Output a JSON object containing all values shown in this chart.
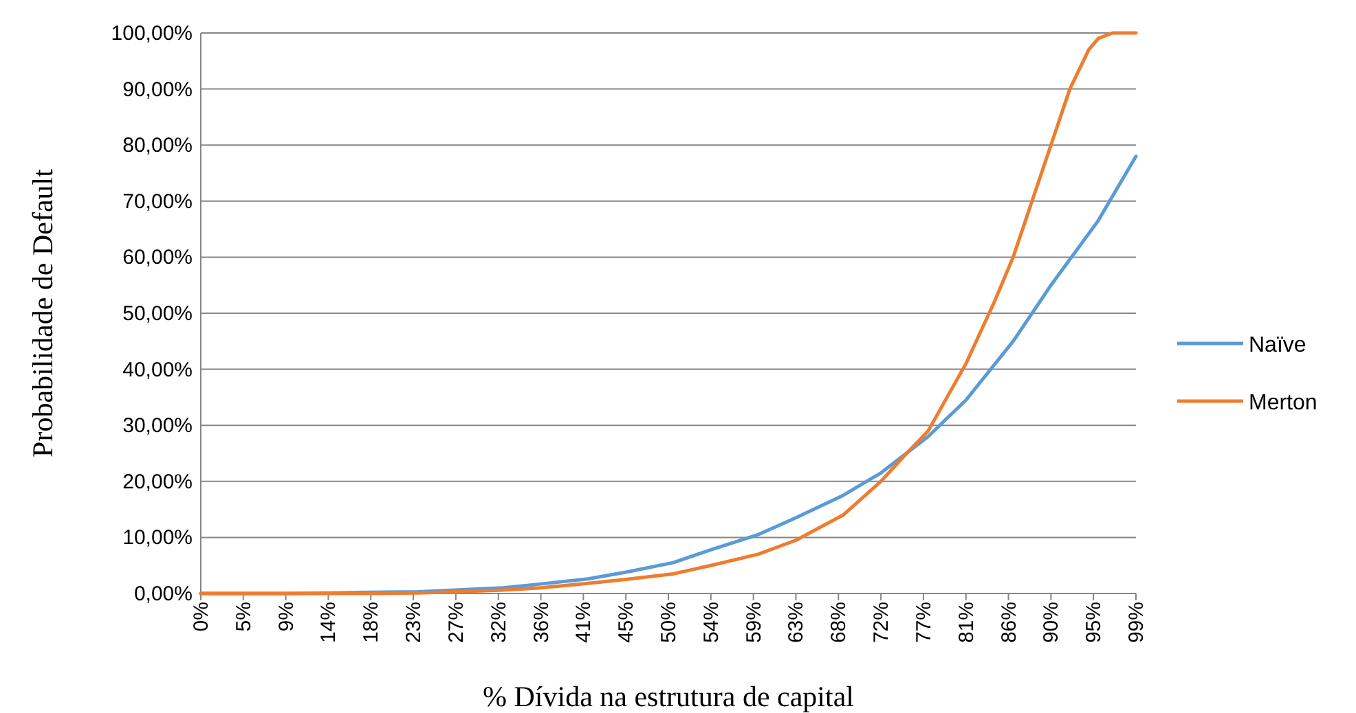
{
  "chart_data": {
    "type": "line",
    "xlabel": "% Dívida na estrutura de capital",
    "ylabel": "Probabilidade de Default",
    "xlim": [
      0,
      99
    ],
    "xticks": [
      {
        "value": 0,
        "label": "0%"
      },
      {
        "value": 4.5,
        "label": "5%"
      },
      {
        "value": 9,
        "label": "9%"
      },
      {
        "value": 13.5,
        "label": "14%"
      },
      {
        "value": 18,
        "label": "18%"
      },
      {
        "value": 22.5,
        "label": "23%"
      },
      {
        "value": 27,
        "label": "27%"
      },
      {
        "value": 31.5,
        "label": "32%"
      },
      {
        "value": 36,
        "label": "36%"
      },
      {
        "value": 40.5,
        "label": "41%"
      },
      {
        "value": 45,
        "label": "45%"
      },
      {
        "value": 49.5,
        "label": "50%"
      },
      {
        "value": 54,
        "label": "54%"
      },
      {
        "value": 58.5,
        "label": "59%"
      },
      {
        "value": 63,
        "label": "63%"
      },
      {
        "value": 67.5,
        "label": "68%"
      },
      {
        "value": 72,
        "label": "72%"
      },
      {
        "value": 76.5,
        "label": "77%"
      },
      {
        "value": 81,
        "label": "81%"
      },
      {
        "value": 85.5,
        "label": "86%"
      },
      {
        "value": 90,
        "label": "90%"
      },
      {
        "value": 94.5,
        "label": "95%"
      },
      {
        "value": 99,
        "label": "99%"
      }
    ],
    "ylim": [
      0,
      100
    ],
    "yticks": [
      {
        "value": 0,
        "label": "0,00%"
      },
      {
        "value": 10,
        "label": "10,00%"
      },
      {
        "value": 20,
        "label": "20,00%"
      },
      {
        "value": 30,
        "label": "30,00%"
      },
      {
        "value": 40,
        "label": "40,00%"
      },
      {
        "value": 50,
        "label": "50,00%"
      },
      {
        "value": 60,
        "label": "60,00%"
      },
      {
        "value": 70,
        "label": "70,00%"
      },
      {
        "value": 80,
        "label": "80,00%"
      },
      {
        "value": 90,
        "label": "90,00%"
      },
      {
        "value": 100,
        "label": "100,00%"
      }
    ],
    "grid": "y",
    "legend": "right",
    "marker": "none",
    "series": [
      {
        "name": "Naïve",
        "color": "#5b9bd5",
        "x": [
          0,
          9,
          14,
          18,
          23,
          27,
          32,
          36,
          41,
          45,
          50,
          54,
          59,
          63,
          68,
          72,
          77,
          81,
          86,
          90,
          95,
          99
        ],
        "values": [
          0,
          0,
          0.1,
          0.2,
          0.3,
          0.6,
          1,
          1.7,
          2.6,
          3.8,
          5.5,
          7.8,
          10.5,
          13.5,
          17.5,
          21.5,
          28,
          34.5,
          45,
          55,
          66.5,
          78
        ]
      },
      {
        "name": "Merton",
        "color": "#ed7d31",
        "x": [
          0,
          18,
          23,
          27,
          32,
          36,
          41,
          45,
          50,
          54,
          59,
          63,
          68,
          72,
          75,
          77,
          79,
          81,
          84,
          86,
          88,
          90,
          92,
          94,
          95,
          96.5,
          99
        ],
        "values": [
          0,
          0,
          0.1,
          0.3,
          0.6,
          1,
          1.8,
          2.5,
          3.5,
          5,
          7,
          9.5,
          14,
          20,
          25.5,
          29,
          35,
          41,
          52,
          60,
          70,
          80,
          90,
          97,
          99,
          100,
          100
        ]
      }
    ]
  }
}
